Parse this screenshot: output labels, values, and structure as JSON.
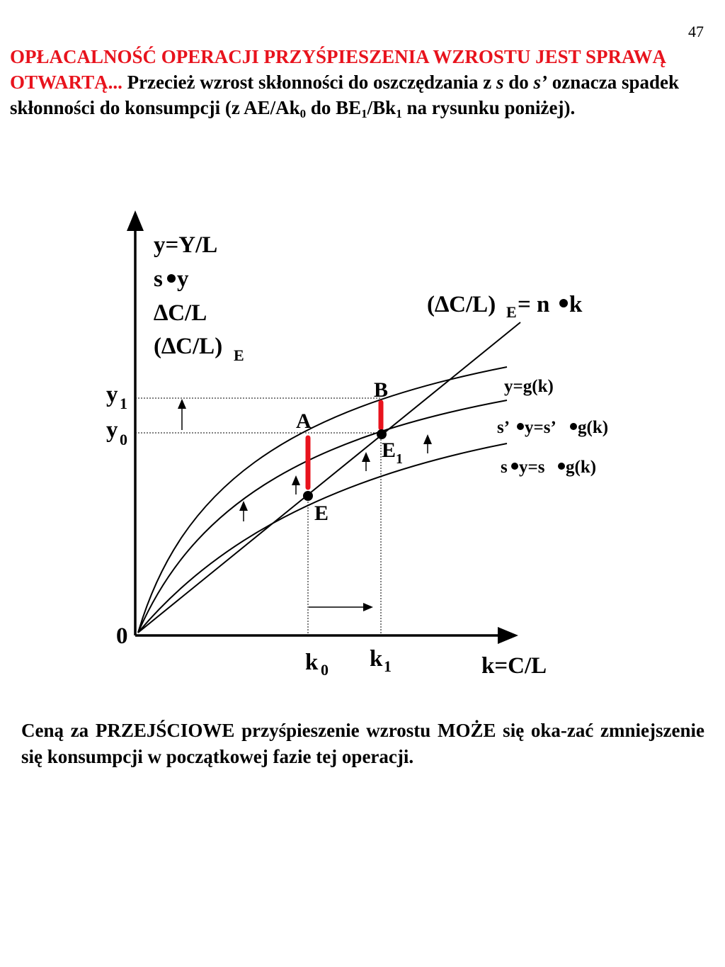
{
  "page_number": "47",
  "intro": {
    "highlight": "OPŁACALNOŚĆ OPERACJI PRZYŚPIESZENIA WZROSTU JEST SPRAWĄ OTWARTĄ...",
    "part1": " Przecież wzrost skłonności do oszczędzania z ",
    "s": "s",
    "part2": " do ",
    "s_prime": "s’",
    "part3": " oznacza spadek skłonności do konsumpcji (z AE/Ak",
    "sub0": "0",
    "part4": " do BE",
    "sub1a": "1",
    "part5": "/Bk",
    "sub1b": "1",
    "part6": " na rysunku poniżej)."
  },
  "diagram": {
    "y_axis_labels": {
      "line1": "y=Y/L",
      "line2_s": "s",
      "line2_y": "y",
      "line3": "∆C/L",
      "line4": "(∆C/L)",
      "line4_sub": "E"
    },
    "line_label": {
      "main": "(∆C/L)",
      "sub": "E",
      "rest": "= n",
      "k": "k"
    },
    "curve_labels": {
      "g": "y=g(k)",
      "s_prime_a": "s’",
      "s_prime_b": "y=s’",
      "s_prime_c": "g(k)",
      "s_a": "s",
      "s_b": "y=s",
      "s_c": "g(k)"
    },
    "y1": {
      "main": "y",
      "sub": "1"
    },
    "y0": {
      "main": "y",
      "sub": "0"
    },
    "origin": "0",
    "k0": {
      "main": "k",
      "sub": "0"
    },
    "k1": {
      "main": "k",
      "sub": "1"
    },
    "x_axis_label": "k=C/L",
    "points": {
      "A": "A",
      "B": "B",
      "E": "E",
      "E1": {
        "main": "E",
        "sub": "1"
      }
    },
    "colors": {
      "highlight": "#e8131d",
      "ink": "#000000"
    }
  },
  "outro": "Ceną za PRZEJŚCIOWE przyśpieszenie wzrostu MOŻE się oka-zać zmniejszenie się konsumpcji w początkowej fazie tej operacji."
}
